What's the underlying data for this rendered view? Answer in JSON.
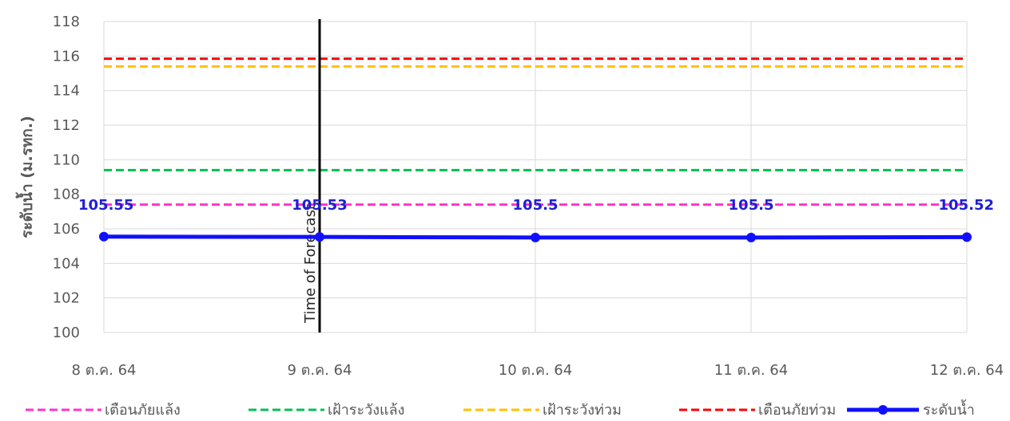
{
  "chart_data": {
    "type": "line",
    "title": "",
    "xlabel": "",
    "ylabel": "ระดับน้ำ (ม.รทก.)",
    "ylim": [
      100,
      118
    ],
    "yticks": [
      100,
      102,
      104,
      106,
      108,
      110,
      112,
      114,
      116,
      118
    ],
    "categories": [
      "8 ต.ค. 64",
      "9 ต.ค. 64",
      "10 ต.ค. 64",
      "11 ต.ค. 64",
      "12 ต.ค. 64"
    ],
    "grid": true,
    "legend_position": "bottom",
    "reference_lines": [
      {
        "name": "เตือนภัยแล้ง",
        "value": 107.4,
        "color": "#ff33cc",
        "style": "dashed"
      },
      {
        "name": "เฝ้าระวังแล้ง",
        "value": 109.4,
        "color": "#00c050",
        "style": "dashed"
      },
      {
        "name": "เฝ้าระวังท่วม",
        "value": 115.4,
        "color": "#ffc000",
        "style": "dashed"
      },
      {
        "name": "เตือนภัยท่วม",
        "value": 115.85,
        "color": "#ff0000",
        "style": "dashed"
      }
    ],
    "series": [
      {
        "name": "ระดับน้ำ",
        "color": "#1010ff",
        "values": [
          105.55,
          105.53,
          105.5,
          105.5,
          105.52
        ],
        "labels": [
          "105.55",
          "105.53",
          "105.5",
          "105.5",
          "105.52"
        ]
      }
    ],
    "annotation": {
      "text": "Time of Forecast",
      "at_category": "9 ต.ค. 64"
    }
  }
}
